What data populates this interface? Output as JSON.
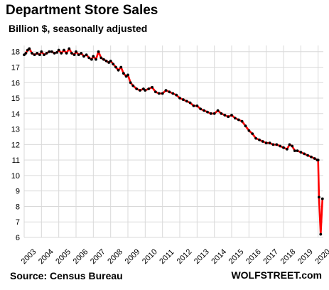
{
  "chart_data": {
    "type": "line",
    "title": "Department Store Sales",
    "subtitle": "Billion $, seasonally adjusted",
    "source": "Source: Census Bureau",
    "brand": "WOLFSTREET.com",
    "xlabel": "",
    "ylabel": "",
    "grid": true,
    "ylim": [
      6,
      18.4
    ],
    "xlim": [
      2003,
      2020.3
    ],
    "y_ticks": [
      6,
      7,
      8,
      9,
      10,
      11,
      12,
      13,
      14,
      15,
      16,
      17,
      18
    ],
    "x_ticks": [
      "2003",
      "2004",
      "2005",
      "2006",
      "2007",
      "2008",
      "2009",
      "2010",
      "2011",
      "2012",
      "2013",
      "2014",
      "2015",
      "2016",
      "2017",
      "2018",
      "2019",
      "2020"
    ],
    "colors": {
      "line": "#ff0000",
      "markers": "#000000",
      "grid": "#d9d9d9"
    },
    "series": [
      {
        "x": [
          2003.0,
          2003.1,
          2003.2,
          2003.3,
          2003.45,
          2003.6,
          2003.75,
          2003.9,
          2004.0,
          2004.15,
          2004.3,
          2004.45,
          2004.6,
          2004.75,
          2004.9,
          2005.0,
          2005.15,
          2005.3,
          2005.45,
          2005.6,
          2005.75,
          2005.9,
          2006.0,
          2006.15,
          2006.3,
          2006.45,
          2006.6,
          2006.75,
          2006.9,
          2007.0,
          2007.15,
          2007.3,
          2007.45,
          2007.6,
          2007.75,
          2007.9,
          2008.0,
          2008.15,
          2008.3,
          2008.45,
          2008.6,
          2008.75,
          2008.9,
          2009.0,
          2009.15,
          2009.3,
          2009.5,
          2009.7,
          2009.9,
          2010.0,
          2010.2,
          2010.4,
          2010.6,
          2010.8,
          2011.0,
          2011.2,
          2011.4,
          2011.6,
          2011.8,
          2012.0,
          2012.2,
          2012.4,
          2012.6,
          2012.8,
          2013.0,
          2013.2,
          2013.4,
          2013.6,
          2013.8,
          2014.0,
          2014.2,
          2014.4,
          2014.6,
          2014.8,
          2015.0,
          2015.2,
          2015.4,
          2015.6,
          2015.8,
          2016.0,
          2016.2,
          2016.4,
          2016.6,
          2016.8,
          2017.0,
          2017.2,
          2017.4,
          2017.6,
          2017.8,
          2018.0,
          2018.2,
          2018.35,
          2018.5,
          2018.65,
          2018.8,
          2019.0,
          2019.2,
          2019.4,
          2019.6,
          2019.8,
          2019.95,
          2020.0,
          2020.05,
          2020.15,
          2020.25
        ],
        "values": [
          17.8,
          17.9,
          18.1,
          18.2,
          17.9,
          17.8,
          17.9,
          17.8,
          18.0,
          17.8,
          17.9,
          18.0,
          18.0,
          17.9,
          17.95,
          18.1,
          17.9,
          18.1,
          17.9,
          18.2,
          17.9,
          17.8,
          18.0,
          17.8,
          17.9,
          17.7,
          17.8,
          17.6,
          17.5,
          17.7,
          17.5,
          18.0,
          17.6,
          17.5,
          17.4,
          17.3,
          17.4,
          17.2,
          17.0,
          16.8,
          17.0,
          16.6,
          16.4,
          16.5,
          16.0,
          15.8,
          15.6,
          15.5,
          15.6,
          15.5,
          15.6,
          15.7,
          15.4,
          15.3,
          15.3,
          15.5,
          15.4,
          15.3,
          15.2,
          15.0,
          14.9,
          14.8,
          14.7,
          14.5,
          14.5,
          14.3,
          14.2,
          14.1,
          14.0,
          14.0,
          14.2,
          14.0,
          13.9,
          13.8,
          13.9,
          13.7,
          13.6,
          13.5,
          13.2,
          12.9,
          12.7,
          12.4,
          12.3,
          12.2,
          12.1,
          12.1,
          12.0,
          12.0,
          11.9,
          11.8,
          11.7,
          12.0,
          11.9,
          11.6,
          11.6,
          11.5,
          11.4,
          11.3,
          11.2,
          11.1,
          11.0,
          11.0,
          8.6,
          6.2,
          8.5
        ]
      }
    ]
  }
}
